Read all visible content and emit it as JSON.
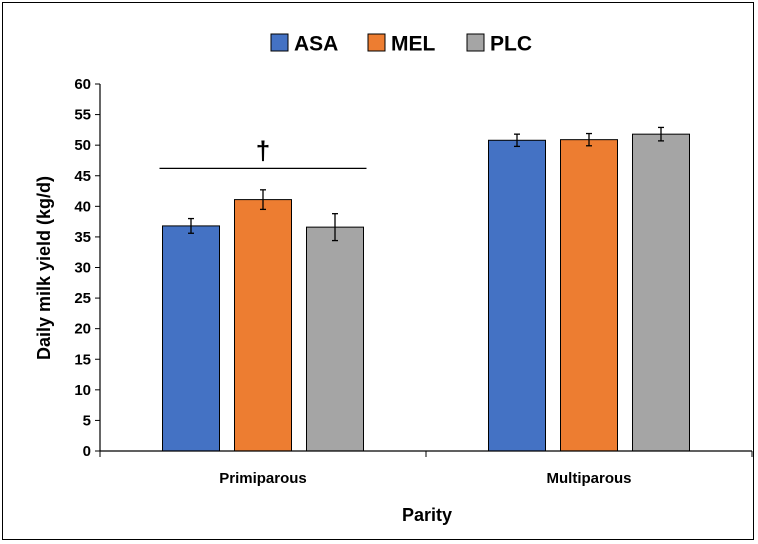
{
  "chart_data": {
    "type": "bar",
    "title": "",
    "xlabel": "Parity",
    "ylabel": "Daily milk yield (kg/d)",
    "ylim": [
      0,
      60
    ],
    "yticks": [
      0,
      5,
      10,
      15,
      20,
      25,
      30,
      35,
      40,
      45,
      50,
      55,
      60
    ],
    "grid": false,
    "legend_position": "top",
    "categories": [
      "Primiparous",
      "Multiparous"
    ],
    "series": [
      {
        "name": "ASA",
        "color": "#4472C4",
        "values": [
          36.8,
          50.8
        ],
        "errors": [
          1.2,
          1.0
        ]
      },
      {
        "name": "MEL",
        "color": "#ED7D31",
        "values": [
          41.1,
          50.9
        ],
        "errors": [
          1.6,
          1.0
        ]
      },
      {
        "name": "PLC",
        "color": "#A5A5A5",
        "values": [
          36.6,
          51.8
        ],
        "errors": [
          2.2,
          1.1
        ]
      }
    ],
    "annotations": [
      {
        "text": "†",
        "category": "Primiparous",
        "bracket_y": 46.2
      }
    ]
  }
}
